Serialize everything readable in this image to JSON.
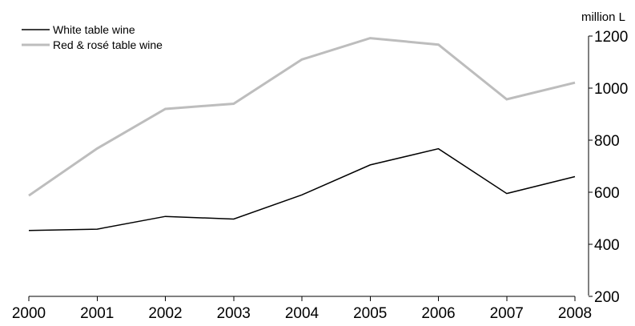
{
  "chart_data": {
    "type": "line",
    "title": "",
    "xlabel": "",
    "ylabel": "million L",
    "categories": [
      "2000",
      "2001",
      "2002",
      "2003",
      "2004",
      "2005",
      "2006",
      "2007",
      "2008"
    ],
    "x": [
      2000,
      2001,
      2002,
      2003,
      2004,
      2005,
      2006,
      2007,
      2008
    ],
    "ylim": [
      200,
      1200
    ],
    "yticks": [
      "200",
      "400",
      "600",
      "800",
      "1000",
      "1200"
    ],
    "y_axis_side": "right",
    "grid": false,
    "legend_position": "top-left",
    "series": [
      {
        "name": "White table wine",
        "color": "#000000",
        "values": [
          453,
          458,
          507,
          497,
          590,
          705,
          767,
          595,
          660
        ]
      },
      {
        "name": "Red & rosé table wine",
        "color": "#bdbdbd",
        "values": [
          587,
          768,
          920,
          940,
          1110,
          1192,
          1167,
          957,
          1021
        ]
      }
    ]
  }
}
